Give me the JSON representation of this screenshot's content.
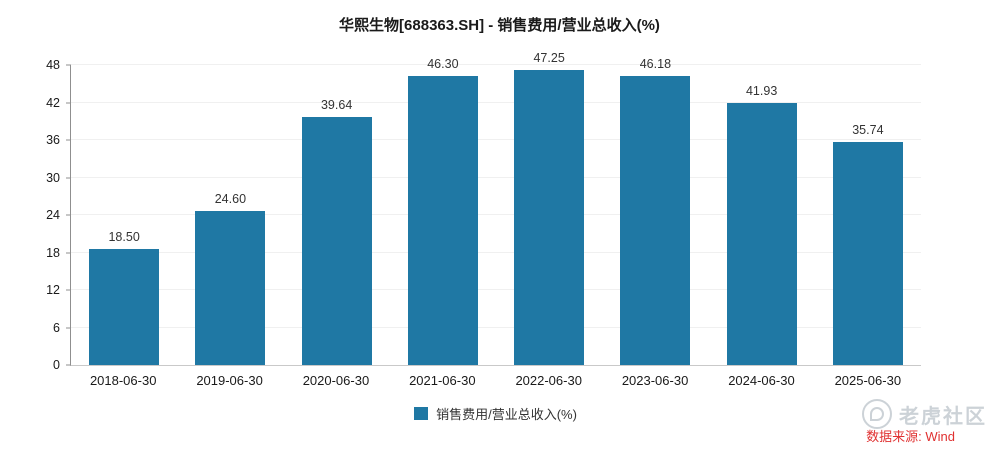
{
  "title": "华熙生物[688363.SH] - 销售费用/营业总收入(%)",
  "chart_data": {
    "type": "bar",
    "title": "华熙生物[688363.SH] - 销售费用/营业总收入(%)",
    "categories": [
      "2018-06-30",
      "2019-06-30",
      "2020-06-30",
      "2021-06-30",
      "2022-06-30",
      "2023-06-30",
      "2024-06-30",
      "2025-06-30"
    ],
    "values": [
      18.5,
      24.6,
      39.64,
      46.3,
      47.25,
      46.18,
      41.93,
      35.74
    ],
    "xlabel": "",
    "ylabel": "",
    "ylim": [
      0,
      48
    ],
    "yticks": [
      0,
      6,
      12,
      18,
      24,
      30,
      36,
      42,
      48
    ],
    "grid": true,
    "legend": [
      "销售费用/营业总收入(%)"
    ],
    "legend_position": "bottom",
    "bar_color": "#1f78a4"
  },
  "source": {
    "text": "数据来源: Wind"
  },
  "watermark": {
    "text": "老虎社区"
  }
}
